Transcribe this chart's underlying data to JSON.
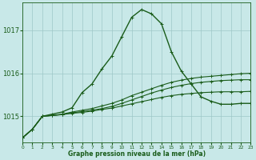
{
  "title": "Graphe pression niveau de la mer (hPa)",
  "background_color": "#c8e8e8",
  "grid_color": "#9ec8c8",
  "line_color": "#1a5c1a",
  "xlim": [
    0,
    23
  ],
  "ylim": [
    1014.4,
    1017.65
  ],
  "yticks": [
    1015,
    1016,
    1017
  ],
  "xticks": [
    0,
    1,
    2,
    3,
    4,
    5,
    6,
    7,
    8,
    9,
    10,
    11,
    12,
    13,
    14,
    15,
    16,
    17,
    18,
    19,
    20,
    21,
    22,
    23
  ],
  "series": [
    {
      "x": [
        0,
        1,
        2,
        3,
        4,
        5,
        6,
        7,
        8,
        9,
        10,
        11,
        12,
        13,
        14,
        15,
        16,
        17,
        18,
        19,
        20,
        21,
        22,
        23
      ],
      "y": [
        1014.5,
        1014.7,
        1015.0,
        1015.05,
        1015.1,
        1015.2,
        1015.55,
        1015.75,
        1016.1,
        1016.4,
        1016.85,
        1017.3,
        1017.48,
        1017.38,
        1017.15,
        1016.5,
        1016.05,
        1015.75,
        1015.45,
        1015.35,
        1015.28,
        1015.28,
        1015.3,
        1015.3
      ],
      "lw": 1.0,
      "marker": true
    },
    {
      "x": [
        0,
        1,
        2,
        3,
        4,
        5,
        6,
        7,
        8,
        9,
        10,
        11,
        12,
        13,
        14,
        15,
        16,
        17,
        18,
        19,
        20,
        21,
        22,
        23
      ],
      "y": [
        1014.5,
        1014.7,
        1015.0,
        1015.02,
        1015.05,
        1015.1,
        1015.14,
        1015.18,
        1015.24,
        1015.3,
        1015.38,
        1015.48,
        1015.56,
        1015.64,
        1015.72,
        1015.79,
        1015.84,
        1015.88,
        1015.91,
        1015.93,
        1015.95,
        1015.97,
        1015.99,
        1016.0
      ],
      "lw": 0.8,
      "marker": true
    },
    {
      "x": [
        0,
        1,
        2,
        3,
        4,
        5,
        6,
        7,
        8,
        9,
        10,
        11,
        12,
        13,
        14,
        15,
        16,
        17,
        18,
        19,
        20,
        21,
        22,
        23
      ],
      "y": [
        1014.5,
        1014.7,
        1015.0,
        1015.02,
        1015.04,
        1015.08,
        1015.11,
        1015.14,
        1015.18,
        1015.23,
        1015.3,
        1015.38,
        1015.46,
        1015.54,
        1015.61,
        1015.67,
        1015.72,
        1015.76,
        1015.79,
        1015.81,
        1015.83,
        1015.84,
        1015.85,
        1015.85
      ],
      "lw": 0.8,
      "marker": true
    },
    {
      "x": [
        0,
        1,
        2,
        3,
        4,
        5,
        6,
        7,
        8,
        9,
        10,
        11,
        12,
        13,
        14,
        15,
        16,
        17,
        18,
        19,
        20,
        21,
        22,
        23
      ],
      "y": [
        1014.5,
        1014.7,
        1015.0,
        1015.02,
        1015.04,
        1015.07,
        1015.09,
        1015.12,
        1015.16,
        1015.19,
        1015.24,
        1015.29,
        1015.34,
        1015.39,
        1015.44,
        1015.48,
        1015.51,
        1015.53,
        1015.55,
        1015.56,
        1015.57,
        1015.57,
        1015.57,
        1015.58
      ],
      "lw": 0.8,
      "marker": true
    }
  ]
}
